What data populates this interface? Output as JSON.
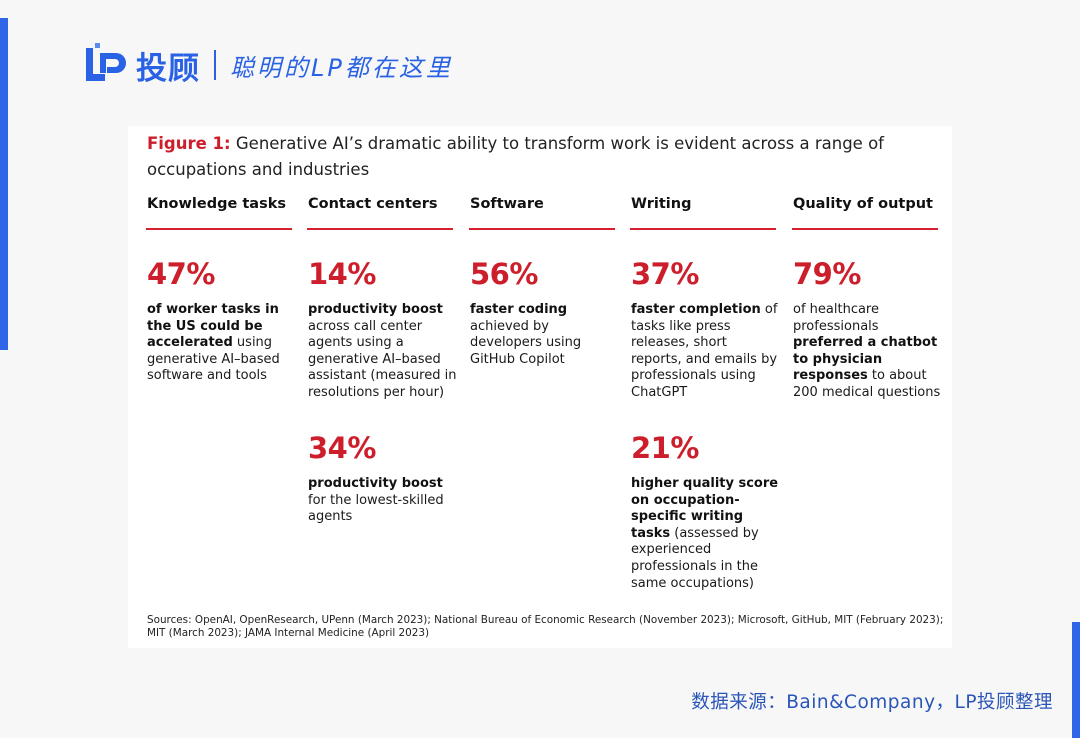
{
  "brand": {
    "name": "投顾",
    "slogan": "聪明的LP都在这里"
  },
  "figure": {
    "label": "Figure 1:",
    "title": "Generative AI’s dramatic ability to transform work is evident across a range of occupations and industries"
  },
  "columns": [
    {
      "header": "Knowledge tasks",
      "stats": [
        {
          "value": "47%",
          "desc_parts": [
            {
              "text": "of worker tasks in the US could be accelerated",
              "bold": true
            },
            {
              "text": " using generative AI–based software and tools",
              "bold": false
            }
          ]
        }
      ]
    },
    {
      "header": "Contact centers",
      "stats": [
        {
          "value": "14%",
          "desc_parts": [
            {
              "text": "productivity boost",
              "bold": true
            },
            {
              "text": " across call center agents using a generative AI–based assistant (measured in resolutions per hour)",
              "bold": false
            }
          ]
        },
        {
          "value": "34%",
          "desc_parts": [
            {
              "text": "productivity boost",
              "bold": true
            },
            {
              "text": " for the lowest-skilled agents",
              "bold": false
            }
          ]
        }
      ]
    },
    {
      "header": "Software",
      "stats": [
        {
          "value": "56%",
          "desc_parts": [
            {
              "text": "faster coding",
              "bold": true
            },
            {
              "text": " achieved by developers using GitHub Copilot",
              "bold": false
            }
          ]
        }
      ]
    },
    {
      "header": "Writing",
      "stats": [
        {
          "value": "37%",
          "desc_parts": [
            {
              "text": "faster completion",
              "bold": true
            },
            {
              "text": " of tasks like press releases, short reports, and emails by professionals using ChatGPT",
              "bold": false
            }
          ]
        },
        {
          "value": "21%",
          "desc_parts": [
            {
              "text": "higher quality score on occupation-specific writing tasks",
              "bold": true
            },
            {
              "text": " (assessed by experienced professionals in the same occupations)",
              "bold": false
            }
          ]
        }
      ]
    },
    {
      "header": "Quality of output",
      "stats": [
        {
          "value": "79%",
          "desc_parts": [
            {
              "text": "of healthcare professionals ",
              "bold": false
            },
            {
              "text": "preferred a chatbot to physician responses",
              "bold": true
            },
            {
              "text": " to about 200 medical questions",
              "bold": false
            }
          ]
        }
      ]
    }
  ],
  "sources": "Sources: OpenAI, OpenResearch, UPenn (March 2023); National Bureau of Economic Research (November 2023); Microsoft, GitHub, MIT (February 2023); MIT (March 2023); JAMA Internal Medicine (April 2023)",
  "footer_credit": "数据来源：Bain&Company，LP投顾整理",
  "colors": {
    "accent_red": "#cc1f2b",
    "brand_blue": "#2a62e6"
  }
}
